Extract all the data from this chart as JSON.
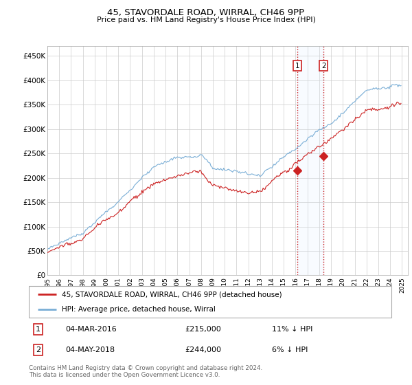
{
  "title": "45, STAVORDALE ROAD, WIRRAL, CH46 9PP",
  "subtitle": "Price paid vs. HM Land Registry's House Price Index (HPI)",
  "ylim": [
    0,
    470000
  ],
  "yticks": [
    0,
    50000,
    100000,
    150000,
    200000,
    250000,
    300000,
    350000,
    400000,
    450000
  ],
  "ytick_labels": [
    "£0",
    "£50K",
    "£100K",
    "£150K",
    "£200K",
    "£250K",
    "£300K",
    "£350K",
    "£400K",
    "£450K"
  ],
  "hpi_color": "#7aaed6",
  "price_color": "#cc2222",
  "shade_color": "#ddeeff",
  "sale1_year": 2016.17,
  "sale2_year": 2018.37,
  "sale1_price": 215000,
  "sale2_price": 244000,
  "legend_line1": "45, STAVORDALE ROAD, WIRRAL, CH46 9PP (detached house)",
  "legend_line2": "HPI: Average price, detached house, Wirral",
  "table_row1_num": "1",
  "table_row1_date": "04-MAR-2016",
  "table_row1_price": "£215,000",
  "table_row1_hpi": "11% ↓ HPI",
  "table_row2_num": "2",
  "table_row2_date": "04-MAY-2018",
  "table_row2_price": "£244,000",
  "table_row2_hpi": "6% ↓ HPI",
  "footer": "Contains HM Land Registry data © Crown copyright and database right 2024.\nThis data is licensed under the Open Government Licence v3.0.",
  "background_color": "#ffffff",
  "grid_color": "#cccccc"
}
